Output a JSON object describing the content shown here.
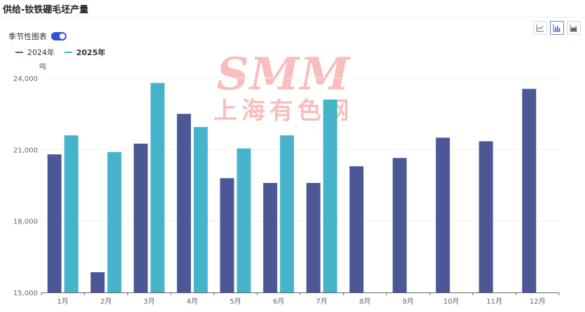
{
  "title": "供给-钕铁硼毛坯产量",
  "seasonal_toggle": {
    "label": "季节性图表",
    "on": true
  },
  "toolbar": {
    "buttons": [
      "line-chart-icon",
      "bar-chart-icon",
      "area-chart-icon"
    ],
    "active": "bar-chart-icon"
  },
  "watermark": {
    "logo": "SMM",
    "subtitle": "上海有色网"
  },
  "chart_data": {
    "type": "bar",
    "ylabel": "吨",
    "ylim": [
      15000,
      24000
    ],
    "yticks": [
      "15,000",
      "18,000",
      "21,000",
      "24,000"
    ],
    "yticks_values": [
      15000,
      18000,
      21000,
      24000
    ],
    "categories": [
      "1月",
      "2月",
      "3月",
      "4月",
      "5月",
      "6月",
      "7月",
      "8月",
      "9月",
      "10月",
      "11月",
      "12月"
    ],
    "series": [
      {
        "name": "2024年",
        "color": "#4c5896",
        "values": [
          20800,
          15850,
          21250,
          22500,
          19800,
          19600,
          19600,
          20300,
          20650,
          21500,
          21350,
          23550
        ]
      },
      {
        "name": "2025年",
        "color": "#45b4cb",
        "values": [
          21600,
          20900,
          23800,
          21950,
          21050,
          21600,
          23100,
          null,
          null,
          null,
          null,
          null
        ]
      }
    ],
    "legend_position": "top-left",
    "grid": true
  }
}
